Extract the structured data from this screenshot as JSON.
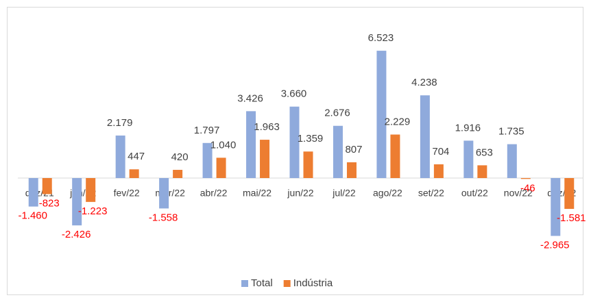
{
  "chart_data": {
    "type": "bar",
    "categories": [
      "dez/21",
      "jan/22",
      "fev/22",
      "mar/22",
      "abr/22",
      "mai/22",
      "jun/22",
      "jul/22",
      "ago/22",
      "set/22",
      "out/22",
      "nov/22",
      "dez/22"
    ],
    "series": [
      {
        "name": "Total",
        "color": "#8faadc",
        "values": [
          -1460,
          -2426,
          2179,
          -1558,
          1797,
          3426,
          3660,
          2676,
          6523,
          4238,
          1916,
          1735,
          -2965
        ],
        "value_labels": [
          "-1.460",
          "-2.426",
          "2.179",
          "-1.558",
          "1.797",
          "3.426",
          "3.660",
          "2.676",
          "6.523",
          "4.238",
          "1.916",
          "1.735",
          "-2.965"
        ]
      },
      {
        "name": "Indústria",
        "color": "#ed7d31",
        "values": [
          -823,
          -1223,
          447,
          420,
          1040,
          1963,
          1359,
          807,
          2229,
          704,
          653,
          -46,
          -1581
        ],
        "value_labels": [
          "-823",
          "-1.223",
          "447",
          "420",
          "1.040",
          "1.963",
          "1.359",
          "807",
          "2.229",
          "704",
          "653",
          "-46",
          "-1.581"
        ]
      }
    ],
    "ylim": [
      -4000,
      8000
    ],
    "negative_label_color": "#ff0000",
    "legend": "bottom"
  }
}
